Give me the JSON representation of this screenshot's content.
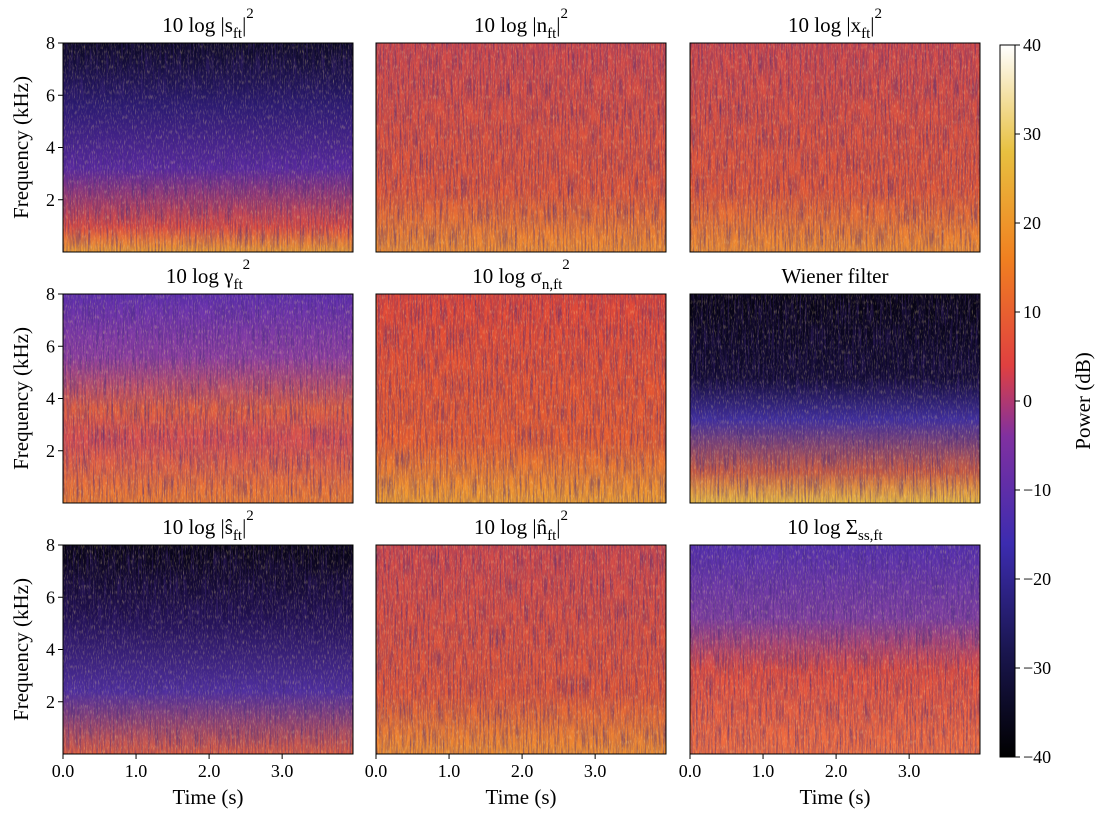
{
  "chart_data": [
    {
      "type": "heatmap",
      "title": [
        {
          "t": "10 log |s"
        },
        {
          "sub": "ft"
        },
        {
          "t": "|"
        },
        {
          "sup": "2"
        }
      ],
      "ylabel": "Frequency (kHz)",
      "xlim": [
        0,
        3.97
      ],
      "ylim": [
        0,
        8
      ],
      "yticks": [
        2,
        4,
        6,
        8
      ]
    },
    {
      "type": "heatmap",
      "title": [
        {
          "t": "10 log |n"
        },
        {
          "sub": "ft"
        },
        {
          "t": "|"
        },
        {
          "sup": "2"
        }
      ],
      "xlim": [
        0,
        3.97
      ],
      "ylim": [
        0,
        8
      ]
    },
    {
      "type": "heatmap",
      "title": [
        {
          "t": "10 log |x"
        },
        {
          "sub": "ft"
        },
        {
          "t": "|"
        },
        {
          "sup": "2"
        }
      ],
      "xlim": [
        0,
        3.97
      ],
      "ylim": [
        0,
        8
      ]
    },
    {
      "type": "heatmap",
      "title": [
        {
          "t": "10 log γ"
        },
        {
          "sub": "ft"
        },
        {
          "sup": "2"
        }
      ],
      "ylabel": "Frequency (kHz)",
      "xlim": [
        0,
        3.97
      ],
      "ylim": [
        0,
        8
      ],
      "yticks": [
        2,
        4,
        6,
        8
      ]
    },
    {
      "type": "heatmap",
      "title": [
        {
          "t": "10 log σ"
        },
        {
          "sub": "n,ft"
        },
        {
          "sup": "2"
        }
      ],
      "xlim": [
        0,
        3.97
      ],
      "ylim": [
        0,
        8
      ]
    },
    {
      "type": "heatmap",
      "title": [
        {
          "t": "Wiener filter"
        }
      ],
      "xlim": [
        0,
        3.97
      ],
      "ylim": [
        0,
        8
      ]
    },
    {
      "type": "heatmap",
      "title": [
        {
          "t": "10 log |ŝ"
        },
        {
          "sub": "ft"
        },
        {
          "t": "|"
        },
        {
          "sup": "2"
        }
      ],
      "ylabel": "Frequency (kHz)",
      "xlabel": "Time (s)",
      "xlim": [
        0,
        3.97
      ],
      "ylim": [
        0,
        8
      ],
      "yticks": [
        2,
        4,
        6,
        8
      ],
      "xticks": [
        {
          "value": 0,
          "label": "0.0"
        },
        {
          "value": 1,
          "label": "1.0"
        },
        {
          "value": 2,
          "label": "2.0"
        },
        {
          "value": 3,
          "label": "3.0"
        }
      ]
    },
    {
      "type": "heatmap",
      "title": [
        {
          "t": "10 log |n̂"
        },
        {
          "sub": "ft"
        },
        {
          "t": "|"
        },
        {
          "sup": "2"
        }
      ],
      "xlabel": "Time (s)",
      "xlim": [
        0,
        3.97
      ],
      "ylim": [
        0,
        8
      ],
      "xticks": [
        {
          "value": 0,
          "label": "0.0"
        },
        {
          "value": 1,
          "label": "1.0"
        },
        {
          "value": 2,
          "label": "2.0"
        },
        {
          "value": 3,
          "label": "3.0"
        }
      ]
    },
    {
      "type": "heatmap",
      "title": [
        {
          "t": "10 log Σ"
        },
        {
          "sub": "ss,ft"
        }
      ],
      "xlabel": "Time (s)",
      "xlim": [
        0,
        3.97
      ],
      "ylim": [
        0,
        8
      ],
      "xticks": [
        {
          "value": 0,
          "label": "0.0"
        },
        {
          "value": 1,
          "label": "1.0"
        },
        {
          "value": 2,
          "label": "2.0"
        },
        {
          "value": 3,
          "label": "3.0"
        }
      ]
    }
  ],
  "colorbar": {
    "label": "Power (dB)",
    "lim": [
      -40,
      40
    ],
    "ticks": [
      {
        "value": -40,
        "label": "−40"
      },
      {
        "value": -30,
        "label": "−30"
      },
      {
        "value": -20,
        "label": "−20"
      },
      {
        "value": -10,
        "label": "−10"
      },
      0,
      10,
      20,
      30,
      40
    ]
  }
}
